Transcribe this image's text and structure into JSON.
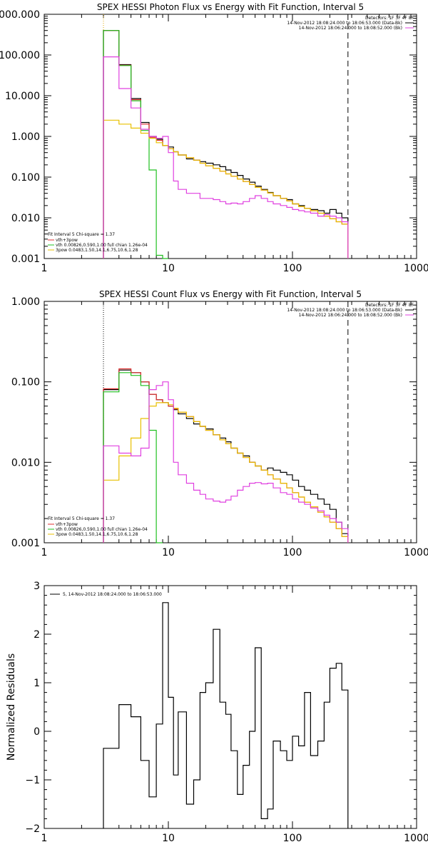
{
  "chart_data": [
    {
      "type": "line",
      "title": "SPEX HESSI Photon Flux vs Energy with Fit Function, Interval 5",
      "xscale": "log",
      "yscale": "log",
      "xlim": [
        1,
        1000
      ],
      "ylim": [
        0.001,
        1000
      ],
      "x_ticks": [
        "1",
        "10",
        "100",
        "1000"
      ],
      "y_ticks": [
        "0.001",
        "0.010",
        "0.100",
        "1.000",
        "10.000",
        "100.000",
        "1000.000"
      ],
      "y_tick_values": [
        0.001,
        0.01,
        0.1,
        1,
        10,
        100,
        1000
      ],
      "detectors": "Detectors: 1F 3F 4F 8F",
      "header_lines": [
        "14-Nov-2012 18:08:24.000 to 18:06:53.000 (Data-Bk)",
        "14-Nov-2012 18:06:24.000 to 18:08:52.000 (Bk)"
      ],
      "legend_title": "Fit Interval 5   Chi-square = 1.37",
      "legend": [
        "vth+3pow",
        "vth 0.00826,0.590,1.00  full chian 1.26e-04",
        "3pow 0.0483,1.50,14.1,6.75,10.6,1.28"
      ],
      "vlines": [
        {
          "x": 3,
          "style": "dotted",
          "color": "#e0a800"
        },
        {
          "x": 280,
          "style": "dashed",
          "color": "#000000"
        }
      ],
      "series": [
        {
          "color": "#000000",
          "edges": [
            3,
            4,
            5,
            6,
            7,
            8,
            9,
            10,
            11,
            12,
            14,
            16,
            18,
            20,
            23,
            26,
            29,
            32,
            36,
            40,
            45,
            50,
            56,
            63,
            70,
            80,
            90,
            100,
            112,
            125,
            140,
            160,
            180,
            200,
            225,
            250,
            280
          ],
          "values": [
            400,
            58,
            8.5,
            2.2,
            1.0,
            0.85,
            0.6,
            0.55,
            0.42,
            0.35,
            0.28,
            0.26,
            0.24,
            0.22,
            0.2,
            0.18,
            0.15,
            0.13,
            0.11,
            0.09,
            0.075,
            0.06,
            0.05,
            0.042,
            0.035,
            0.03,
            0.028,
            0.022,
            0.02,
            0.017,
            0.016,
            0.015,
            0.013,
            0.016,
            0.013,
            0.01
          ]
        },
        {
          "color": "#e03030",
          "edges": [
            3,
            4,
            5,
            6,
            7,
            8,
            9,
            10,
            11,
            12,
            14,
            16,
            18,
            20,
            23,
            26,
            29,
            32,
            36,
            40,
            45,
            50,
            56,
            63,
            70,
            80,
            90,
            100,
            112,
            125,
            140,
            160,
            180,
            200,
            225,
            250,
            280
          ],
          "values": [
            400,
            56,
            8.0,
            2.0,
            0.95,
            0.8,
            0.6,
            0.5,
            0.42,
            0.35,
            0.3,
            0.26,
            0.22,
            0.19,
            0.165,
            0.14,
            0.12,
            0.105,
            0.09,
            0.078,
            0.066,
            0.056,
            0.048,
            0.041,
            0.035,
            0.03,
            0.026,
            0.022,
            0.019,
            0.017,
            0.015,
            0.013,
            0.011,
            0.0095,
            0.008,
            0.007
          ]
        },
        {
          "color": "#20c020",
          "edges": [
            3,
            4,
            5,
            6,
            7,
            8,
            9,
            10
          ],
          "values": [
            400,
            55,
            7.5,
            1.4,
            0.15,
            0.0012,
            0.0009
          ]
        },
        {
          "color": "#e8c000",
          "edges": [
            3,
            4,
            5,
            6,
            7,
            8,
            9,
            10,
            11,
            12,
            14,
            16,
            18,
            20,
            23,
            26,
            29,
            32,
            36,
            40,
            45,
            50,
            56,
            63,
            70,
            80,
            90,
            100,
            112,
            125,
            140,
            160,
            180,
            200,
            225,
            250,
            280
          ],
          "values": [
            2.5,
            2.0,
            1.6,
            1.2,
            0.9,
            0.7,
            0.6,
            0.5,
            0.42,
            0.35,
            0.3,
            0.26,
            0.22,
            0.19,
            0.165,
            0.14,
            0.12,
            0.105,
            0.09,
            0.078,
            0.066,
            0.056,
            0.048,
            0.041,
            0.035,
            0.03,
            0.026,
            0.022,
            0.019,
            0.017,
            0.015,
            0.013,
            0.011,
            0.0095,
            0.008,
            0.007
          ]
        },
        {
          "color": "#e040e0",
          "edges": [
            3,
            4,
            5,
            6,
            7,
            8,
            9,
            10,
            11,
            12,
            14,
            16,
            18,
            20,
            23,
            26,
            29,
            32,
            36,
            40,
            45,
            50,
            56,
            63,
            70,
            80,
            90,
            100,
            112,
            125,
            140,
            160,
            180,
            200,
            225,
            250,
            280
          ],
          "values": [
            90,
            15,
            5,
            1.5,
            1.0,
            0.9,
            1.0,
            0.4,
            0.08,
            0.05,
            0.04,
            0.04,
            0.03,
            0.03,
            0.028,
            0.025,
            0.022,
            0.023,
            0.022,
            0.025,
            0.03,
            0.035,
            0.03,
            0.025,
            0.022,
            0.02,
            0.018,
            0.016,
            0.015,
            0.014,
            0.013,
            0.011,
            0.012,
            0.011,
            0.01,
            0.008
          ]
        }
      ]
    },
    {
      "type": "line",
      "title": "SPEX HESSI Count Flux vs Energy with Fit Function, Interval 5",
      "xscale": "log",
      "yscale": "log",
      "xlim": [
        1,
        1000
      ],
      "ylim": [
        0.001,
        1
      ],
      "x_ticks": [
        "1",
        "10",
        "100",
        "1000"
      ],
      "y_ticks": [
        "0.001",
        "0.010",
        "0.100",
        "1.000"
      ],
      "y_tick_values": [
        0.001,
        0.01,
        0.1,
        1
      ],
      "detectors": "Detectors: 1F 3F 4F 8F",
      "header_lines": [
        "14-Nov-2012 18:08:24.000 to 18:06:53.000 (Data-Bk)",
        "14-Nov-2012 18:06:24.000 to 18:08:52.000 (Bk)"
      ],
      "legend_title": "Fit Interval 5   Chi-square = 1.37",
      "legend": [
        "vth+3pow",
        "vth 0.00826,0.590,1.00  full chian 1.26e-04",
        "3pow 0.0483,1.50,14.1,6.75,10.6,1.28"
      ],
      "vlines": [
        {
          "x": 3,
          "style": "dotted",
          "color": "#000000"
        },
        {
          "x": 280,
          "style": "dashed",
          "color": "#000000"
        }
      ],
      "series": [
        {
          "color": "#000000",
          "edges": [
            3,
            4,
            5,
            6,
            7,
            8,
            9,
            10,
            11,
            12,
            14,
            16,
            18,
            20,
            23,
            26,
            29,
            32,
            36,
            40,
            45,
            50,
            56,
            63,
            70,
            80,
            90,
            100,
            112,
            125,
            140,
            160,
            180,
            200,
            225,
            250,
            280
          ],
          "values": [
            0.08,
            0.14,
            0.13,
            0.1,
            0.07,
            0.06,
            0.055,
            0.05,
            0.045,
            0.04,
            0.035,
            0.03,
            0.028,
            0.026,
            0.022,
            0.02,
            0.018,
            0.015,
            0.013,
            0.012,
            0.01,
            0.009,
            0.008,
            0.0085,
            0.008,
            0.0075,
            0.007,
            0.006,
            0.005,
            0.0045,
            0.004,
            0.0035,
            0.003,
            0.0026,
            0.0018,
            0.0013
          ]
        },
        {
          "color": "#e03030",
          "edges": [
            3,
            4,
            5,
            6,
            7,
            8,
            9,
            10,
            11,
            12,
            14,
            16,
            18,
            20,
            23,
            26,
            29,
            32,
            36,
            40,
            45,
            50,
            56,
            63,
            70,
            80,
            90,
            100,
            112,
            125,
            140,
            160,
            180,
            200,
            225,
            250,
            280
          ],
          "values": [
            0.082,
            0.145,
            0.13,
            0.1,
            0.07,
            0.06,
            0.055,
            0.05,
            0.046,
            0.042,
            0.037,
            0.032,
            0.028,
            0.025,
            0.022,
            0.019,
            0.017,
            0.015,
            0.013,
            0.0115,
            0.01,
            0.009,
            0.008,
            0.007,
            0.0062,
            0.0055,
            0.0048,
            0.0042,
            0.0037,
            0.0032,
            0.0028,
            0.0024,
            0.0021,
            0.0018,
            0.0015,
            0.0012
          ]
        },
        {
          "color": "#20c020",
          "edges": [
            3,
            4,
            5,
            6,
            7,
            8,
            9
          ],
          "values": [
            0.075,
            0.13,
            0.12,
            0.09,
            0.025,
            0.0009
          ]
        },
        {
          "color": "#e8c000",
          "edges": [
            3,
            4,
            5,
            6,
            7,
            8,
            9,
            10,
            11,
            12,
            14,
            16,
            18,
            20,
            23,
            26,
            29,
            32,
            36,
            40,
            45,
            50,
            56,
            63,
            70,
            80,
            90,
            100,
            112,
            125,
            140,
            160,
            180,
            200,
            225,
            250,
            280
          ],
          "values": [
            0.006,
            0.012,
            0.02,
            0.035,
            0.05,
            0.055,
            0.055,
            0.052,
            0.047,
            0.042,
            0.037,
            0.032,
            0.028,
            0.025,
            0.022,
            0.019,
            0.017,
            0.015,
            0.013,
            0.0115,
            0.01,
            0.009,
            0.008,
            0.007,
            0.0062,
            0.0055,
            0.0048,
            0.0042,
            0.0037,
            0.0032,
            0.0028,
            0.0024,
            0.0021,
            0.0018,
            0.0015,
            0.0012
          ]
        },
        {
          "color": "#e040e0",
          "edges": [
            3,
            4,
            5,
            6,
            7,
            8,
            9,
            10,
            11,
            12,
            14,
            16,
            18,
            20,
            23,
            26,
            29,
            32,
            36,
            40,
            45,
            50,
            56,
            63,
            70,
            80,
            90,
            100,
            112,
            125,
            140,
            160,
            180,
            200,
            225,
            250,
            280
          ],
          "values": [
            0.016,
            0.013,
            0.012,
            0.015,
            0.08,
            0.09,
            0.1,
            0.06,
            0.01,
            0.007,
            0.0055,
            0.0045,
            0.004,
            0.0035,
            0.0033,
            0.0032,
            0.0034,
            0.0038,
            0.0045,
            0.005,
            0.0055,
            0.0056,
            0.0054,
            0.0055,
            0.0048,
            0.0042,
            0.004,
            0.0035,
            0.0032,
            0.003,
            0.0027,
            0.0025,
            0.0022,
            0.002,
            0.0018,
            0.0015
          ]
        }
      ]
    },
    {
      "type": "line",
      "title": "",
      "xscale": "log",
      "yscale": "linear",
      "xlim": [
        1,
        1000
      ],
      "ylim": [
        -2,
        3
      ],
      "x_ticks": [
        "1",
        "10",
        "100",
        "1000"
      ],
      "y_ticks": [
        "-2",
        "-1",
        "0",
        "1",
        "2",
        "3"
      ],
      "y_tick_values": [
        -2,
        -1,
        0,
        1,
        2,
        3
      ],
      "ylabel": "Normalized Residuals",
      "legend": [
        "5, 14-Nov-2012 18:08:24.000 to 18:06:53.000"
      ],
      "series": [
        {
          "color": "#000000",
          "edges": [
            3,
            4,
            5,
            6,
            7,
            8,
            9,
            10,
            11,
            12,
            14,
            16,
            18,
            20,
            23,
            26,
            29,
            32,
            36,
            40,
            45,
            50,
            56,
            63,
            70,
            80,
            90,
            100,
            112,
            125,
            140,
            160,
            180,
            200,
            225,
            250,
            280
          ],
          "values": [
            -0.35,
            0.55,
            0.3,
            -0.6,
            -1.35,
            0.15,
            2.65,
            0.7,
            -0.9,
            0.4,
            -1.5,
            -1.0,
            0.8,
            1.0,
            2.1,
            0.6,
            0.35,
            -0.4,
            -1.3,
            -0.7,
            0.0,
            1.72,
            -1.8,
            -1.6,
            -0.2,
            -0.4,
            -0.6,
            -0.1,
            -0.3,
            0.8,
            -0.5,
            -0.2,
            0.6,
            1.3,
            1.4,
            0.85
          ]
        }
      ]
    }
  ]
}
